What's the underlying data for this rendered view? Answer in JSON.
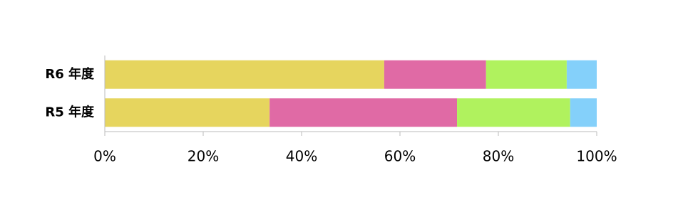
{
  "chart_data": {
    "type": "stacked_bar_horizontal",
    "categories": [
      "R6 年度",
      "R5 年度"
    ],
    "series": [
      {
        "color": "#e6d55e",
        "values": [
          56.8,
          33.5
        ]
      },
      {
        "color": "#e06aa5",
        "values": [
          20.7,
          38.1
        ]
      },
      {
        "color": "#b0f25e",
        "values": [
          16.4,
          23.0
        ]
      },
      {
        "color": "#84d0fa",
        "values": [
          6.1,
          5.4
        ]
      }
    ],
    "xlim": [
      0,
      100
    ],
    "xticks": [
      {
        "value": 0,
        "label": "0%"
      },
      {
        "value": 20,
        "label": "20%"
      },
      {
        "value": 40,
        "label": "40%"
      },
      {
        "value": 60,
        "label": "60%"
      },
      {
        "value": 80,
        "label": "80%"
      },
      {
        "value": 100,
        "label": "100%"
      }
    ]
  }
}
